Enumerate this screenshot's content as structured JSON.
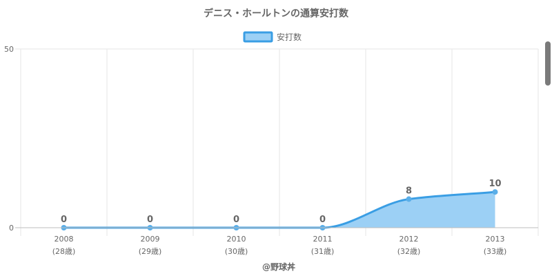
{
  "chart_data": {
    "type": "area",
    "title": "デニス・ホールトンの通算安打数",
    "categories": [
      "2008",
      "2009",
      "2010",
      "2011",
      "2012",
      "2013"
    ],
    "sub_categories": [
      "(28歳)",
      "(29歳)",
      "(30歳)",
      "(31歳)",
      "(32歳)",
      "(33歳)"
    ],
    "series": [
      {
        "name": "安打数",
        "values": [
          0,
          0,
          0,
          0,
          8,
          10
        ]
      }
    ],
    "ylim": [
      0,
      50
    ],
    "yticks": [
      "0",
      "50"
    ],
    "grid": true,
    "legend_position": "top-center",
    "colors": {
      "line": "#3a9ee4",
      "fill": "#9cd0f5",
      "point": "#5aaee8"
    }
  },
  "credit": "@野球丼"
}
